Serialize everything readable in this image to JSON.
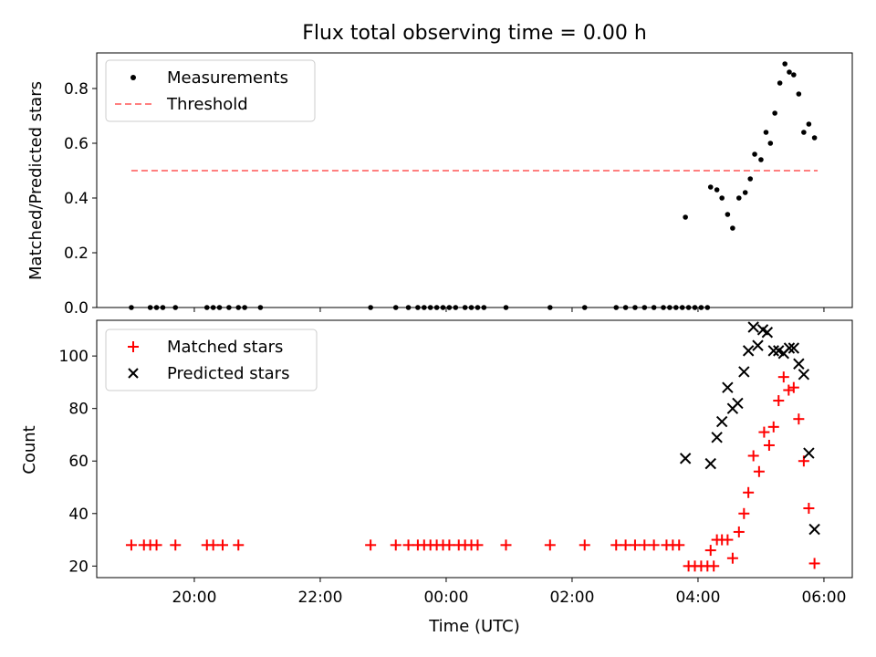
{
  "figure": {
    "title": "Flux total observing time = 0.00 h",
    "xlabel": "Time (UTC)"
  },
  "chart_data": [
    {
      "type": "scatter",
      "ylabel": "Matched/Predicted stars",
      "ylim": [
        0,
        0.93
      ],
      "xlim": [
        -5.55,
        6.45
      ],
      "yticks": [
        0.0,
        0.2,
        0.4,
        0.6,
        0.8
      ],
      "ytick_labels": [
        "0.0",
        "0.2",
        "0.4",
        "0.6",
        "0.8"
      ],
      "grid": false,
      "legend_position": "top-left",
      "series": [
        {
          "name": "Measurements",
          "type": "scatter",
          "color": "#000000",
          "marker": "dot",
          "points": [
            [
              -5.0,
              0
            ],
            [
              -4.7,
              0
            ],
            [
              -4.6,
              0
            ],
            [
              -4.5,
              0
            ],
            [
              -4.3,
              0
            ],
            [
              -3.8,
              0
            ],
            [
              -3.7,
              0
            ],
            [
              -3.6,
              0
            ],
            [
              -3.45,
              0
            ],
            [
              -3.3,
              0
            ],
            [
              -3.2,
              0
            ],
            [
              -2.95,
              0
            ],
            [
              -1.2,
              0
            ],
            [
              -0.8,
              0
            ],
            [
              -0.6,
              0
            ],
            [
              -0.45,
              0
            ],
            [
              -0.35,
              0
            ],
            [
              -0.25,
              0
            ],
            [
              -0.15,
              0
            ],
            [
              -0.05,
              0
            ],
            [
              0.05,
              0
            ],
            [
              0.15,
              0
            ],
            [
              0.3,
              0
            ],
            [
              0.4,
              0
            ],
            [
              0.5,
              0
            ],
            [
              0.6,
              0
            ],
            [
              0.95,
              0
            ],
            [
              1.65,
              0
            ],
            [
              2.2,
              0
            ],
            [
              2.7,
              0
            ],
            [
              2.85,
              0
            ],
            [
              3.0,
              0
            ],
            [
              3.15,
              0
            ],
            [
              3.3,
              0
            ],
            [
              3.45,
              0
            ],
            [
              3.55,
              0
            ],
            [
              3.65,
              0
            ],
            [
              3.75,
              0
            ],
            [
              3.85,
              0
            ],
            [
              3.95,
              0
            ],
            [
              4.05,
              0
            ],
            [
              4.15,
              0
            ],
            [
              3.8,
              0.33
            ],
            [
              4.2,
              0.44
            ],
            [
              4.3,
              0.43
            ],
            [
              4.38,
              0.4
            ],
            [
              4.47,
              0.34
            ],
            [
              4.55,
              0.29
            ],
            [
              4.65,
              0.4
            ],
            [
              4.75,
              0.42
            ],
            [
              4.83,
              0.47
            ],
            [
              4.9,
              0.56
            ],
            [
              5.0,
              0.54
            ],
            [
              5.08,
              0.64
            ],
            [
              5.15,
              0.6
            ],
            [
              5.22,
              0.71
            ],
            [
              5.3,
              0.82
            ],
            [
              5.38,
              0.89
            ],
            [
              5.45,
              0.86
            ],
            [
              5.52,
              0.85
            ],
            [
              5.6,
              0.78
            ],
            [
              5.68,
              0.64
            ],
            [
              5.76,
              0.67
            ],
            [
              5.85,
              0.62
            ]
          ]
        },
        {
          "name": "Threshold",
          "type": "line",
          "color": "#ff7f7f",
          "dashed": true,
          "points": [
            [
              -5.0,
              0.5
            ],
            [
              5.9,
              0.5
            ]
          ]
        }
      ]
    },
    {
      "type": "scatter",
      "ylabel": "Count",
      "ylim": [
        15.6,
        113.6
      ],
      "xlim": [
        -5.55,
        6.45
      ],
      "yticks": [
        20,
        40,
        60,
        80,
        100
      ],
      "ytick_labels": [
        "20",
        "40",
        "60",
        "80",
        "100"
      ],
      "xticks": [
        -4,
        -2,
        0,
        2,
        4,
        6
      ],
      "xtick_labels": [
        "20:00",
        "22:00",
        "00:00",
        "02:00",
        "04:00",
        "06:00"
      ],
      "grid": false,
      "legend_position": "top-left",
      "series": [
        {
          "name": "Matched stars",
          "type": "scatter",
          "color": "#ff0000",
          "marker": "plus",
          "points": [
            [
              -5.0,
              28
            ],
            [
              -4.8,
              28
            ],
            [
              -4.7,
              28
            ],
            [
              -4.6,
              28
            ],
            [
              -4.3,
              28
            ],
            [
              -3.8,
              28
            ],
            [
              -3.7,
              28
            ],
            [
              -3.55,
              28
            ],
            [
              -3.3,
              28
            ],
            [
              -1.2,
              28
            ],
            [
              -0.8,
              28
            ],
            [
              -0.6,
              28
            ],
            [
              -0.45,
              28
            ],
            [
              -0.35,
              28
            ],
            [
              -0.25,
              28
            ],
            [
              -0.15,
              28
            ],
            [
              -0.05,
              28
            ],
            [
              0.05,
              28
            ],
            [
              0.2,
              28
            ],
            [
              0.3,
              28
            ],
            [
              0.4,
              28
            ],
            [
              0.5,
              28
            ],
            [
              0.95,
              28
            ],
            [
              1.65,
              28
            ],
            [
              2.2,
              28
            ],
            [
              2.7,
              28
            ],
            [
              2.85,
              28
            ],
            [
              3.0,
              28
            ],
            [
              3.15,
              28
            ],
            [
              3.3,
              28
            ],
            [
              3.5,
              28
            ],
            [
              3.6,
              28
            ],
            [
              3.7,
              28
            ],
            [
              3.85,
              20
            ],
            [
              3.95,
              20
            ],
            [
              4.05,
              20
            ],
            [
              4.15,
              20
            ],
            [
              4.25,
              20
            ],
            [
              4.2,
              26
            ],
            [
              4.3,
              30
            ],
            [
              4.38,
              30
            ],
            [
              4.47,
              30
            ],
            [
              4.55,
              23
            ],
            [
              4.65,
              33
            ],
            [
              4.73,
              40
            ],
            [
              4.8,
              48
            ],
            [
              4.88,
              62
            ],
            [
              4.97,
              56
            ],
            [
              5.05,
              71
            ],
            [
              5.13,
              66
            ],
            [
              5.2,
              73
            ],
            [
              5.28,
              83
            ],
            [
              5.36,
              92
            ],
            [
              5.44,
              87
            ],
            [
              5.52,
              88
            ],
            [
              5.6,
              76
            ],
            [
              5.68,
              60
            ],
            [
              5.76,
              42
            ],
            [
              5.85,
              21
            ]
          ]
        },
        {
          "name": "Predicted stars",
          "type": "scatter",
          "color": "#000000",
          "marker": "x",
          "points": [
            [
              3.8,
              61
            ],
            [
              4.2,
              59
            ],
            [
              4.3,
              69
            ],
            [
              4.38,
              75
            ],
            [
              4.47,
              88
            ],
            [
              4.55,
              80
            ],
            [
              4.63,
              82
            ],
            [
              4.73,
              94
            ],
            [
              4.8,
              102
            ],
            [
              4.88,
              111
            ],
            [
              4.95,
              104
            ],
            [
              5.03,
              110
            ],
            [
              5.1,
              109
            ],
            [
              5.2,
              102
            ],
            [
              5.28,
              102
            ],
            [
              5.36,
              101
            ],
            [
              5.45,
              103
            ],
            [
              5.52,
              103
            ],
            [
              5.6,
              97
            ],
            [
              5.68,
              93
            ],
            [
              5.76,
              63
            ],
            [
              5.85,
              34
            ]
          ]
        }
      ]
    }
  ]
}
